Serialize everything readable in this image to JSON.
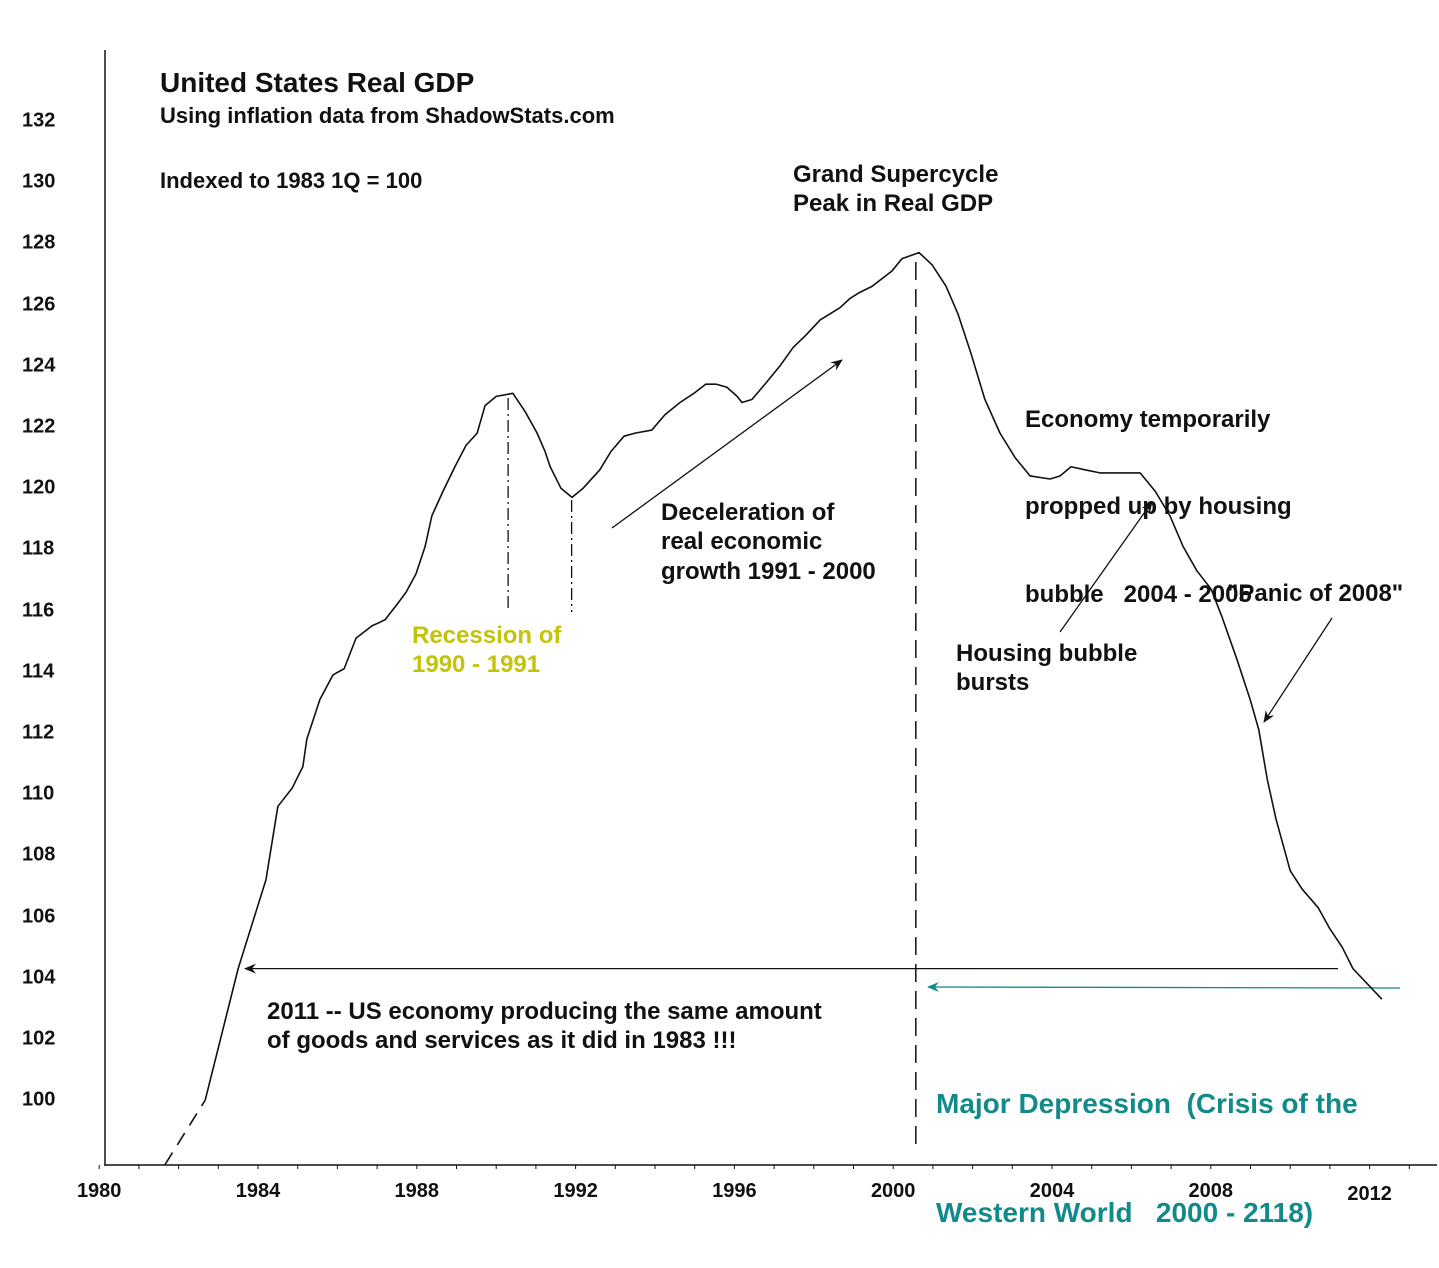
{
  "chart_data": {
    "type": "line",
    "title": "United States Real GDP",
    "subtitle": "Using inflation data from ShadowStats.com",
    "note": "Indexed to 1983 1Q = 100",
    "xlabel": "",
    "ylabel": "",
    "xlim": [
      1980,
      2013.7
    ],
    "ylim": [
      97.9,
      134.3
    ],
    "grid": false,
    "x_ticks": [
      "1980",
      "1984",
      "1988",
      "1992",
      "1996",
      "2000",
      "2004",
      "2008",
      "2012"
    ],
    "y_ticks": [
      "100",
      "102",
      "104",
      "106",
      "108",
      "110",
      "112",
      "114",
      "116",
      "118",
      "120",
      "122",
      "124",
      "126",
      "128",
      "130",
      "132"
    ],
    "series": [
      {
        "color": "#111111",
        "dashed_segment": [
          [
            1981.66,
            97.9
          ],
          [
            1982.67,
            100.0
          ]
        ],
        "points": [
          [
            1982.67,
            100.0
          ],
          [
            1983.5,
            104.3
          ],
          [
            1984.2,
            107.2
          ],
          [
            1984.5,
            109.6
          ],
          [
            1984.86,
            110.2
          ],
          [
            1985.13,
            110.9
          ],
          [
            1985.23,
            111.8
          ],
          [
            1985.56,
            113.1
          ],
          [
            1985.89,
            113.9
          ],
          [
            1986.17,
            114.1
          ],
          [
            1986.47,
            115.1
          ],
          [
            1986.87,
            115.5
          ],
          [
            1987.2,
            115.7
          ],
          [
            1987.5,
            116.2
          ],
          [
            1987.73,
            116.6
          ],
          [
            1987.98,
            117.2
          ],
          [
            1988.21,
            118.1
          ],
          [
            1988.38,
            119.1
          ],
          [
            1988.66,
            119.9
          ],
          [
            1988.96,
            120.7
          ],
          [
            1989.24,
            121.4
          ],
          [
            1989.52,
            121.8
          ],
          [
            1989.72,
            122.7
          ],
          [
            1990.0,
            123.0
          ],
          [
            1990.42,
            123.1
          ],
          [
            1990.73,
            122.5
          ],
          [
            1991.03,
            121.8
          ],
          [
            1991.23,
            121.2
          ],
          [
            1991.36,
            120.7
          ],
          [
            1991.63,
            120.0
          ],
          [
            1991.91,
            119.7
          ],
          [
            1992.19,
            120.0
          ],
          [
            1992.61,
            120.6
          ],
          [
            1992.89,
            121.2
          ],
          [
            1993.22,
            121.7
          ],
          [
            1993.5,
            121.8
          ],
          [
            1993.92,
            121.9
          ],
          [
            1994.25,
            122.4
          ],
          [
            1994.63,
            122.8
          ],
          [
            1994.98,
            123.1
          ],
          [
            1995.28,
            123.4
          ],
          [
            1995.54,
            123.4
          ],
          [
            1995.81,
            123.3
          ],
          [
            1996.07,
            123.0
          ],
          [
            1996.19,
            122.8
          ],
          [
            1996.44,
            122.9
          ],
          [
            1996.77,
            123.4
          ],
          [
            1997.15,
            124.0
          ],
          [
            1997.48,
            124.6
          ],
          [
            1997.8,
            125.0
          ],
          [
            1998.16,
            125.5
          ],
          [
            1998.41,
            125.7
          ],
          [
            1998.66,
            125.9
          ],
          [
            1998.91,
            126.2
          ],
          [
            1999.16,
            126.4
          ],
          [
            1999.47,
            126.6
          ],
          [
            1999.67,
            126.8
          ],
          [
            1999.97,
            127.1
          ],
          [
            2000.22,
            127.5
          ],
          [
            2000.65,
            127.7
          ],
          [
            2000.98,
            127.3
          ],
          [
            2001.33,
            126.6
          ],
          [
            2001.63,
            125.7
          ],
          [
            2001.96,
            124.4
          ],
          [
            2002.31,
            122.9
          ],
          [
            2002.69,
            121.8
          ],
          [
            2003.07,
            121.0
          ],
          [
            2003.45,
            120.4
          ],
          [
            2003.95,
            120.3
          ],
          [
            2004.2,
            120.4
          ],
          [
            2004.48,
            120.7
          ],
          [
            2004.83,
            120.6
          ],
          [
            2005.21,
            120.5
          ],
          [
            2006.22,
            120.5
          ],
          [
            2006.6,
            119.9
          ],
          [
            2006.97,
            119.1
          ],
          [
            2007.3,
            118.1
          ],
          [
            2007.65,
            117.3
          ],
          [
            2008.01,
            116.7
          ],
          [
            2008.28,
            115.8
          ],
          [
            2008.66,
            114.4
          ],
          [
            2008.99,
            113.1
          ],
          [
            2009.21,
            112.1
          ],
          [
            2009.42,
            110.5
          ],
          [
            2009.64,
            109.2
          ],
          [
            2010.0,
            107.5
          ],
          [
            2010.3,
            106.9
          ],
          [
            2010.7,
            106.3
          ],
          [
            2011.0,
            105.6
          ],
          [
            2011.31,
            105.0
          ],
          [
            2011.58,
            104.3
          ],
          [
            2012.31,
            103.3
          ]
        ]
      }
    ],
    "annotations": {
      "peak": {
        "lines": [
          "Grand Supercycle",
          "Peak in Real GDP"
        ],
        "marker_year": 2000.57
      },
      "recession": {
        "lines": [
          "Recession of",
          "1990 - 1991"
        ],
        "color": "#c3c30a",
        "marker_years": [
          1990.3,
          1991.9
        ]
      },
      "deceleration": {
        "lines": [
          "Deceleration of",
          "real economic",
          "growth 1991 - 2000"
        ]
      },
      "propped": {
        "lines": [
          "Economy temporarily",
          "propped up by housing",
          "bubble   2004 - 2005"
        ]
      },
      "housing": {
        "lines": [
          "Housing bubble",
          "bursts"
        ]
      },
      "panic": {
        "lines": [
          "\"Panic of 2008\""
        ]
      },
      "same_level": {
        "lines": [
          "2011 -- US economy producing the same amount",
          "of goods and services as it did in 1983 !!!"
        ],
        "level": 104.3
      },
      "depression": {
        "lines": [
          "Major Depression  (Crisis of the",
          "Western World   2000 - 2118)"
        ],
        "color": "#138a8a"
      }
    }
  }
}
